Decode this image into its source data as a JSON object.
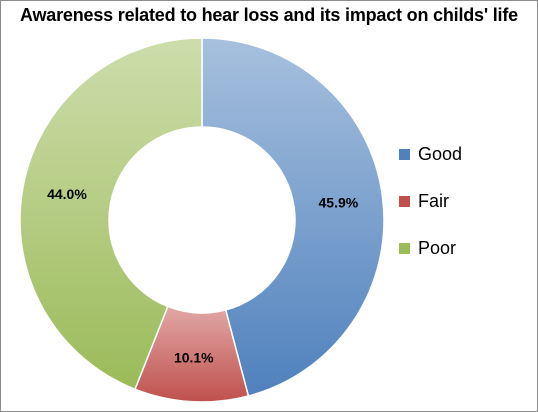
{
  "chart_data": {
    "type": "pie",
    "donut": true,
    "title": "Awareness related to hear loss and its impact on childs' life",
    "legend_position": "right",
    "slices": [
      {
        "label": "Good",
        "value": 45.9,
        "value_label": "45.9%",
        "color": "#4f81bd"
      },
      {
        "label": "Fair",
        "value": 10.1,
        "value_label": "10.1%",
        "color": "#c0504d"
      },
      {
        "label": "Poor",
        "value": 44.0,
        "value_label": "44.0%",
        "color": "#9bbb59"
      }
    ]
  }
}
